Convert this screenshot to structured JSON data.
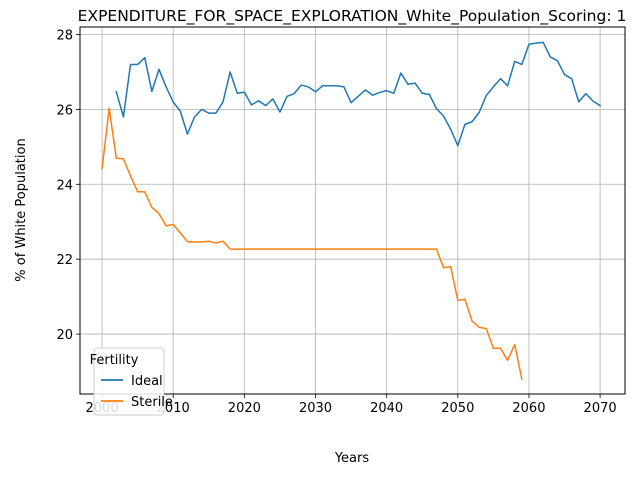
{
  "chart_data": {
    "type": "line",
    "title": "EXPENDITURE_FOR_SPACE_EXPLORATION_White_Population_Scoring: 1",
    "xlabel": "Years",
    "ylabel": "% of White Population",
    "xlim": [
      1996.9,
      2073.5
    ],
    "ylim": [
      18.4,
      28.2
    ],
    "xticks": [
      2000,
      2010,
      2020,
      2030,
      2040,
      2050,
      2060,
      2070
    ],
    "yticks": [
      20,
      22,
      24,
      26,
      28
    ],
    "grid": true,
    "legend": {
      "title": "Fertility",
      "position": "lower-left"
    },
    "series": [
      {
        "name": "Ideal",
        "color": "#1f77b4",
        "x": [
          2002,
          2003,
          2004,
          2005,
          2006,
          2007,
          2008,
          2009,
          2010,
          2011,
          2012,
          2013,
          2014,
          2015,
          2016,
          2017,
          2018,
          2019,
          2020,
          2021,
          2022,
          2023,
          2024,
          2025,
          2026,
          2027,
          2028,
          2029,
          2030,
          2031,
          2032,
          2033,
          2034,
          2035,
          2036,
          2037,
          2038,
          2039,
          2040,
          2041,
          2042,
          2043,
          2044,
          2045,
          2046,
          2047,
          2048,
          2049,
          2050,
          2051,
          2052,
          2053,
          2054,
          2055,
          2056,
          2057,
          2058,
          2059,
          2060,
          2061,
          2062,
          2063,
          2064,
          2065,
          2066,
          2067,
          2068,
          2069,
          2070
        ],
        "y": [
          26.47,
          25.8,
          27.2,
          27.2,
          27.38,
          26.48,
          27.07,
          26.6,
          26.2,
          25.95,
          25.34,
          25.8,
          26.0,
          25.9,
          25.9,
          26.2,
          27.0,
          26.43,
          26.46,
          26.12,
          26.23,
          26.1,
          26.28,
          25.93,
          26.35,
          26.42,
          26.65,
          26.6,
          26.47,
          26.63,
          26.63,
          26.63,
          26.6,
          26.18,
          26.35,
          26.52,
          26.38,
          26.45,
          26.5,
          26.43,
          26.97,
          26.67,
          26.7,
          26.43,
          26.4,
          26.02,
          25.82,
          25.47,
          25.03,
          25.6,
          25.67,
          25.92,
          26.37,
          26.6,
          26.82,
          26.63,
          27.28,
          27.2,
          27.74,
          27.77,
          27.79,
          27.4,
          27.3,
          26.93,
          26.82,
          26.2,
          26.42,
          26.22,
          26.1
        ]
      },
      {
        "name": "Sterile",
        "color": "#ff7f0e",
        "x": [
          2000,
          2001,
          2002,
          2003,
          2004,
          2005,
          2006,
          2007,
          2008,
          2009,
          2010,
          2011,
          2012,
          2013,
          2014,
          2015,
          2016,
          2017,
          2018,
          2019,
          2020,
          2021,
          2022,
          2023,
          2024,
          2025,
          2026,
          2027,
          2028,
          2029,
          2030,
          2031,
          2032,
          2033,
          2034,
          2035,
          2036,
          2037,
          2038,
          2039,
          2040,
          2041,
          2042,
          2043,
          2044,
          2045,
          2046,
          2047,
          2048,
          2049,
          2050,
          2051,
          2052,
          2053,
          2054,
          2055,
          2056,
          2057,
          2058,
          2059
        ],
        "y": [
          24.42,
          26.03,
          24.7,
          24.68,
          24.22,
          23.8,
          23.8,
          23.38,
          23.22,
          22.89,
          22.93,
          22.7,
          22.47,
          22.46,
          22.46,
          22.48,
          22.43,
          22.48,
          22.27,
          22.27,
          22.27,
          22.27,
          22.27,
          22.27,
          22.27,
          22.27,
          22.27,
          22.27,
          22.27,
          22.27,
          22.27,
          22.27,
          22.27,
          22.27,
          22.27,
          22.27,
          22.27,
          22.27,
          22.27,
          22.27,
          22.27,
          22.27,
          22.27,
          22.27,
          22.27,
          22.27,
          22.27,
          22.27,
          21.77,
          21.8,
          20.9,
          20.93,
          20.35,
          20.18,
          20.15,
          19.62,
          19.62,
          19.3,
          19.72,
          18.8
        ]
      }
    ]
  }
}
